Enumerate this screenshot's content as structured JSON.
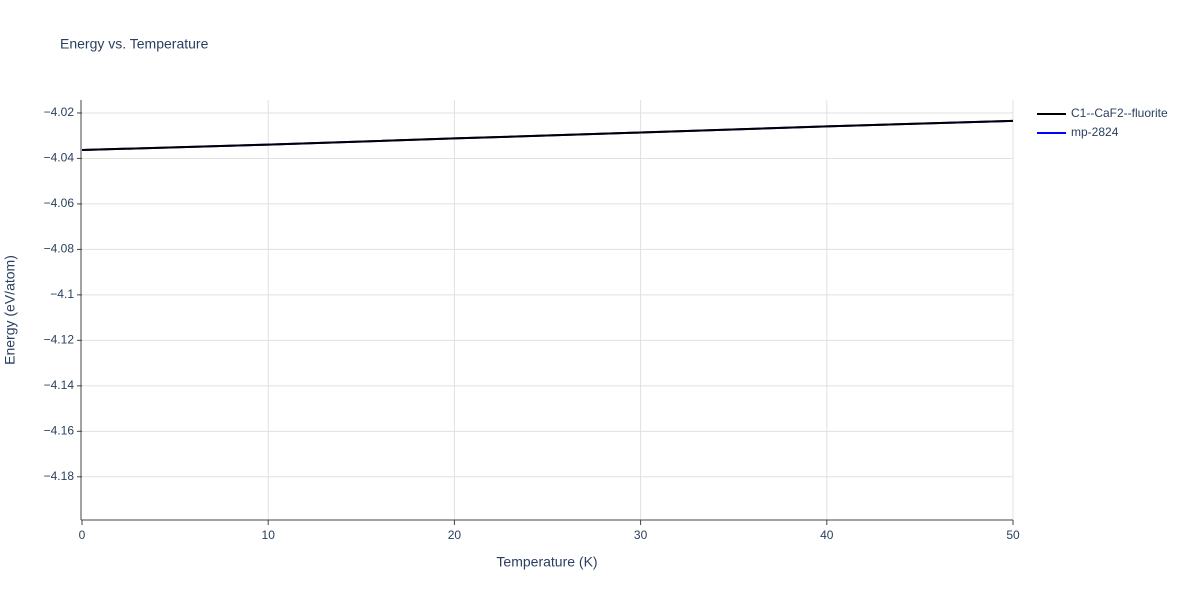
{
  "chart_data": {
    "type": "line",
    "title": "Energy vs. Temperature",
    "x_label": "Temperature (K)",
    "y_label": "Energy (eV/atom)",
    "x": [
      0,
      10,
      20,
      30,
      40,
      50
    ],
    "series": [
      {
        "name": "C1--CaF2--fluorite",
        "color": "#000000",
        "values": [
          -4.0363,
          -4.0339,
          -4.0312,
          -4.0286,
          -4.0259,
          -4.0235
        ]
      },
      {
        "name": "mp-2824",
        "color": "#0000ff",
        "values": [
          -4.0363,
          -4.0339,
          -4.0312,
          -4.0286,
          -4.0259,
          -4.0235
        ]
      }
    ],
    "xlim": [
      0,
      50
    ],
    "xticks": [
      0,
      10,
      20,
      30,
      40,
      50
    ],
    "ylim": [
      -4.199,
      -4.0143
    ],
    "yticks": [
      {
        "value": -4.18,
        "label": "−4.18"
      },
      {
        "value": -4.16,
        "label": "−4.16"
      },
      {
        "value": -4.14,
        "label": "−4.14"
      },
      {
        "value": -4.12,
        "label": "−4.12"
      },
      {
        "value": -4.1,
        "label": "−4.1"
      },
      {
        "value": -4.08,
        "label": "−4.08"
      },
      {
        "value": -4.06,
        "label": "−4.06"
      },
      {
        "value": -4.04,
        "label": "−4.04"
      },
      {
        "value": -4.02,
        "label": "−4.02"
      }
    ],
    "grid": true
  }
}
